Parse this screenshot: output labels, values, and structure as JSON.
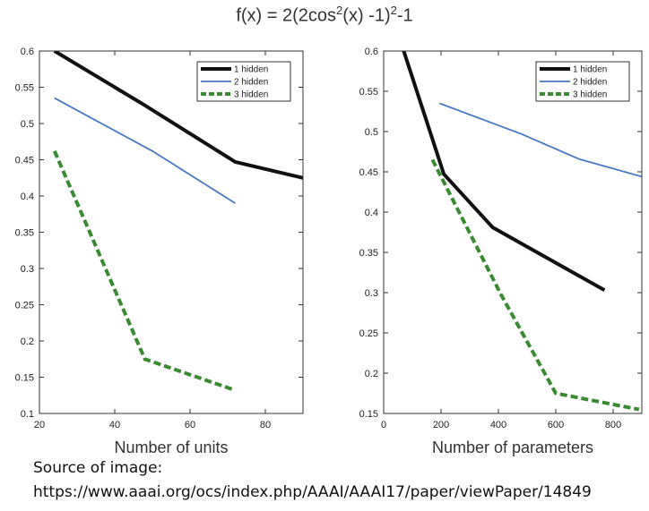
{
  "figure": {
    "title_parts": [
      "f(x) = 2(2cos",
      "2",
      "(x) -1)",
      "2",
      "-1"
    ],
    "source_label": "Source of image:",
    "source_url": "https://www.aaai.org/ocs/index.php/AAAI/AAAI17/paper/viewPaper/14849"
  },
  "chart_data": [
    {
      "type": "line",
      "title": "",
      "xlabel": "Number of units",
      "ylabel": "",
      "xlim": [
        20,
        90
      ],
      "ylim": [
        0.1,
        0.6
      ],
      "xticks": [
        20,
        40,
        60,
        80
      ],
      "yticks": [
        0.1,
        0.15,
        0.2,
        0.25,
        0.3,
        0.35,
        0.4,
        0.45,
        0.5,
        0.55,
        0.6
      ],
      "ytick_labels": [
        "0.1",
        "0.15",
        "0.2",
        "0.25",
        "0.3",
        "0.35",
        "0.4",
        "0.45",
        "0.5",
        "0.55",
        "0.6"
      ],
      "grid": false,
      "legend_position": "top-right",
      "series": [
        {
          "name": "1 hidden",
          "color": "#111111",
          "style": "solid-thick",
          "points": [
            [
              24,
              0.6
            ],
            [
              48,
              0.525
            ],
            [
              72,
              0.447
            ],
            [
              90,
              0.425
            ]
          ]
        },
        {
          "name": "2 hidden",
          "color": "#4a78c4",
          "style": "solid-thin",
          "points": [
            [
              24,
              0.535
            ],
            [
              50,
              0.462
            ],
            [
              72,
              0.39
            ]
          ]
        },
        {
          "name": "3 hidden",
          "color": "#3a8a33",
          "style": "dashed",
          "points": [
            [
              24,
              0.462
            ],
            [
              48,
              0.175
            ],
            [
              72,
              0.132
            ]
          ]
        }
      ]
    },
    {
      "type": "line",
      "title": "",
      "xlabel": "Number of parameters",
      "ylabel": "",
      "xlim": [
        0,
        900
      ],
      "ylim": [
        0.15,
        0.6
      ],
      "xticks": [
        0,
        200,
        400,
        600,
        800
      ],
      "yticks": [
        0.15,
        0.2,
        0.25,
        0.3,
        0.35,
        0.4,
        0.45,
        0.5,
        0.55,
        0.6
      ],
      "ytick_labels": [
        "0.15",
        "0.2",
        "0.25",
        "0.3",
        "0.35",
        "0.4",
        "0.45",
        "0.5",
        "0.55",
        "0.6"
      ],
      "grid": false,
      "legend_position": "top-right",
      "series": [
        {
          "name": "1 hidden",
          "color": "#111111",
          "style": "solid-thick",
          "points": [
            [
              70,
              0.6
            ],
            [
              210,
              0.447
            ],
            [
              380,
              0.381
            ],
            [
              770,
              0.303
            ]
          ]
        },
        {
          "name": "2 hidden",
          "color": "#4a78c4",
          "style": "solid-thin",
          "points": [
            [
              195,
              0.535
            ],
            [
              480,
              0.497
            ],
            [
              680,
              0.466
            ],
            [
              900,
              0.444
            ]
          ]
        },
        {
          "name": "3 hidden",
          "color": "#3a8a33",
          "style": "dashed",
          "points": [
            [
              170,
              0.465
            ],
            [
              410,
              0.297
            ],
            [
              600,
              0.175
            ],
            [
              890,
              0.155
            ]
          ]
        }
      ]
    }
  ]
}
